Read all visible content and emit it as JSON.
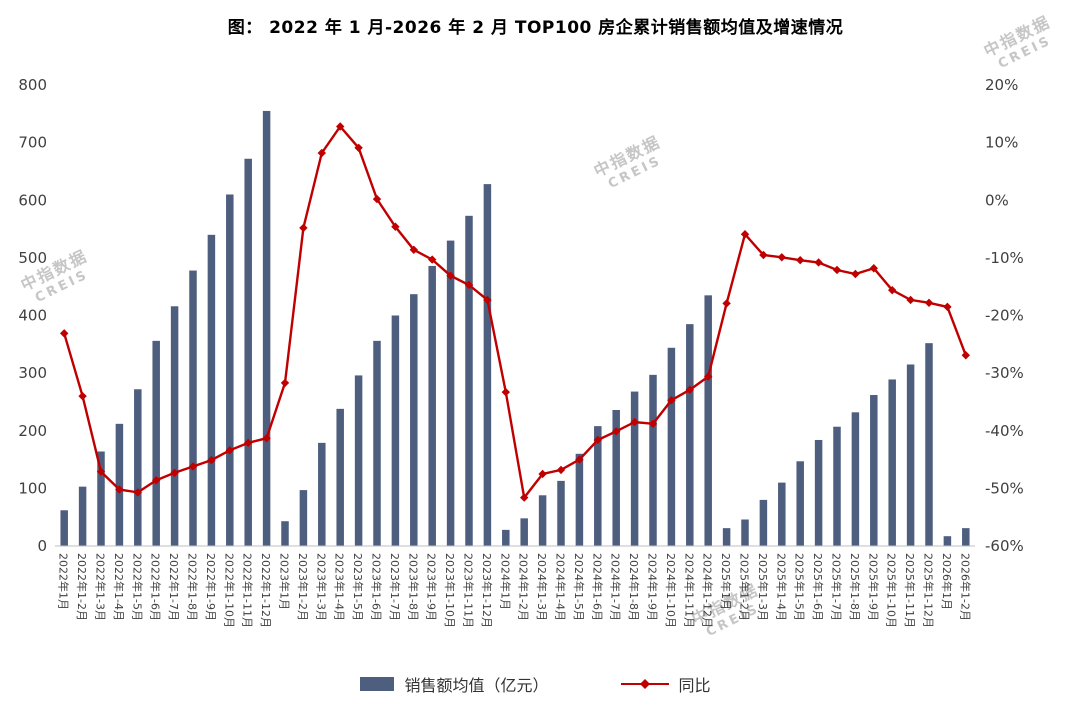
{
  "title": "图：  2022 年 1 月-2026 年 2 月 TOP100 房企累计销售额均值及增速情况",
  "watermark": {
    "line1": "中指数据",
    "line2": "CREIS"
  },
  "legend": {
    "bar_label": "销售额均值（亿元）",
    "line_label": "同比"
  },
  "colors": {
    "bar": "#4e5e7e",
    "line": "#c00000",
    "axis_text": "#404040",
    "axis_line": "#bfbfbf",
    "watermark": "#c6c6c6"
  },
  "chart_data": {
    "type": "bar+line",
    "title": "2022年1月-2026年2月TOP100房企累计销售额均值及增速情况",
    "categories": [
      "2022年1月",
      "2022年1-2月",
      "2022年1-3月",
      "2022年1-4月",
      "2022年1-5月",
      "2022年1-6月",
      "2022年1-7月",
      "2022年1-8月",
      "2022年1-9月",
      "2022年1-10月",
      "2022年1-11月",
      "2022年1-12月",
      "2023年1月",
      "2023年1-2月",
      "2023年1-3月",
      "2023年1-4月",
      "2023年1-5月",
      "2023年1-6月",
      "2023年1-7月",
      "2023年1-8月",
      "2023年1-9月",
      "2023年1-10月",
      "2023年1-11月",
      "2023年1-12月",
      "2024年1月",
      "2024年1-2月",
      "2024年1-3月",
      "2024年1-4月",
      "2024年1-5月",
      "2024年1-6月",
      "2024年1-7月",
      "2024年1-8月",
      "2024年1-9月",
      "2024年1-10月",
      "2024年1-11月",
      "2024年1-12月",
      "2025年1月",
      "2025年1-2月",
      "2025年1-3月",
      "2025年1-4月",
      "2025年1-5月",
      "2025年1-6月",
      "2025年1-7月",
      "2025年1-8月",
      "2025年1-9月",
      "2025年1-10月",
      "2025年1-11月",
      "2025年1-12月",
      "2026年1月",
      "2026年1-2月"
    ],
    "series": [
      {
        "name": "销售额均值（亿元）",
        "type": "bar",
        "axis": "left",
        "values": [
          62,
          103,
          164,
          212,
          272,
          356,
          416,
          478,
          540,
          610,
          672,
          755,
          43,
          97,
          179,
          238,
          296,
          356,
          400,
          437,
          486,
          530,
          573,
          628,
          28,
          48,
          88,
          113,
          160,
          208,
          236,
          268,
          297,
          344,
          385,
          435,
          31,
          46,
          80,
          110,
          147,
          184,
          207,
          232,
          262,
          289,
          315,
          352,
          17,
          31
        ]
      },
      {
        "name": "同比",
        "type": "line",
        "axis": "right",
        "unit": "%",
        "values": [
          -23.1,
          -34.0,
          -47.1,
          -50.2,
          -50.7,
          -48.6,
          -47.3,
          -46.2,
          -45.1,
          -43.4,
          -42.1,
          -41.3,
          -31.7,
          -4.8,
          8.2,
          12.8,
          9.1,
          0.2,
          -4.6,
          -8.6,
          -10.3,
          -13.1,
          -14.7,
          -17.3,
          -33.3,
          -51.6,
          -47.5,
          -46.8,
          -45.0,
          -41.6,
          -40.1,
          -38.5,
          -38.8,
          -34.7,
          -32.9,
          -30.6,
          -17.9,
          -5.9,
          -9.5,
          -9.9,
          -10.4,
          -10.8,
          -12.1,
          -12.8,
          -11.8,
          -15.6,
          -17.3,
          -17.8,
          -18.5,
          -26.9
        ]
      }
    ],
    "left_axis": {
      "min": 0,
      "max": 800,
      "step": 100,
      "ticks": [
        "0",
        "100",
        "200",
        "300",
        "400",
        "500",
        "600",
        "700",
        "800"
      ]
    },
    "right_axis": {
      "min": -60,
      "max": 20,
      "step": 10,
      "unit": "%",
      "ticks": [
        "-60%",
        "-50%",
        "-40%",
        "-30%",
        "-20%",
        "-10%",
        "0%",
        "10%",
        "20%"
      ]
    },
    "grid": false,
    "legend_position": "bottom"
  }
}
